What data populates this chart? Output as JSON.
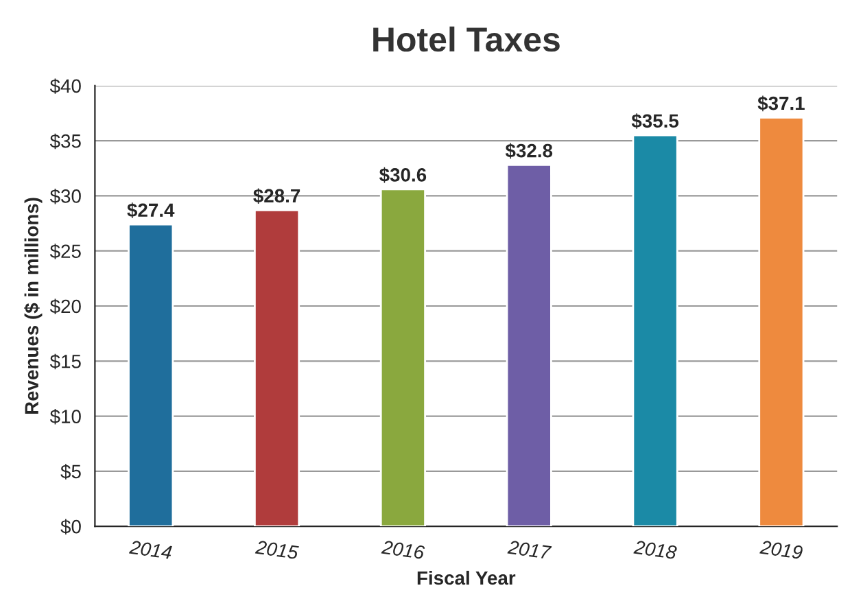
{
  "chart_data": {
    "type": "bar",
    "title": "Hotel Taxes",
    "xlabel": "Fiscal Year",
    "ylabel": "Revenues ($ in millions)",
    "categories": [
      "2014",
      "2015",
      "2016",
      "2017",
      "2018",
      "2019"
    ],
    "values": [
      27.4,
      28.7,
      30.6,
      32.8,
      35.5,
      37.1
    ],
    "colors": [
      "#1f6e9c",
      "#b03c3c",
      "#8aa83e",
      "#6e5ea6",
      "#1b8aa6",
      "#ee8a3e"
    ],
    "value_labels": [
      "$27.4",
      "$28.7",
      "$30.6",
      "$32.8",
      "$35.5",
      "$37.1"
    ],
    "ylim": [
      0,
      40
    ],
    "yticks": [
      {
        "value": 0,
        "label": "$0"
      },
      {
        "value": 5,
        "label": "$5"
      },
      {
        "value": 10,
        "label": "$10"
      },
      {
        "value": 15,
        "label": "$15"
      },
      {
        "value": 20,
        "label": "$20"
      },
      {
        "value": 25,
        "label": "$25"
      },
      {
        "value": 30,
        "label": "$30"
      },
      {
        "value": 35,
        "label": "$35"
      },
      {
        "value": 40,
        "label": "$40"
      }
    ],
    "grid": "y"
  }
}
